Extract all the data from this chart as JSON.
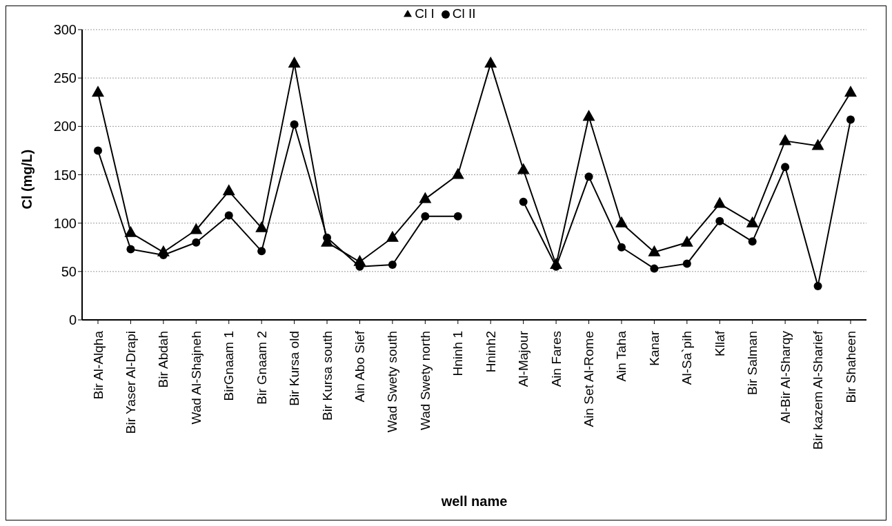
{
  "chart_data": {
    "type": "line",
    "xlabel": "well name",
    "ylabel": "Cl (mg/L)",
    "categories": [
      "Bir Al-Alqha",
      "Bir Yaser Al-Drapi",
      "Bir Abdah",
      "Wad Al-Shajneh",
      "BirGnaam 1",
      "Bir Gnaam 2",
      "Bir Kursa old",
      "Bir Kursa south",
      "Ain Abo Sief",
      "Wad Swety south",
      "Wad Swety north",
      "Hninh 1",
      "Hninh2",
      "Al-Majour",
      "Ain Fares",
      "Ain Set Al-Rome",
      "Ain Taha",
      "Kanar",
      "Al-Sa`pih",
      "Kllaf",
      "Bir Salman",
      "Al-Bir Al-Sharqy",
      "Bir kazem Al-Sharief",
      "Bir Shaheen"
    ],
    "series": [
      {
        "name": "Cl I",
        "color": "#000000",
        "marker": "triangle",
        "values": [
          235,
          90,
          70,
          93,
          133,
          95,
          265,
          80,
          60,
          85,
          125,
          150,
          265,
          155,
          57,
          210,
          100,
          70,
          80,
          120,
          100,
          185,
          180,
          235
        ]
      },
      {
        "name": "Cl II",
        "color": "#000000",
        "marker": "circle",
        "values": [
          175,
          73,
          67,
          80,
          108,
          71,
          202,
          85,
          55,
          57,
          107,
          107,
          null,
          122,
          55,
          148,
          75,
          53,
          58,
          102,
          81,
          158,
          35,
          207
        ]
      }
    ],
    "ylim": [
      0,
      300
    ],
    "yticks": [
      0,
      50,
      100,
      150,
      200,
      250,
      300
    ],
    "grid": "y",
    "legend": "top",
    "line_style": "solid"
  }
}
